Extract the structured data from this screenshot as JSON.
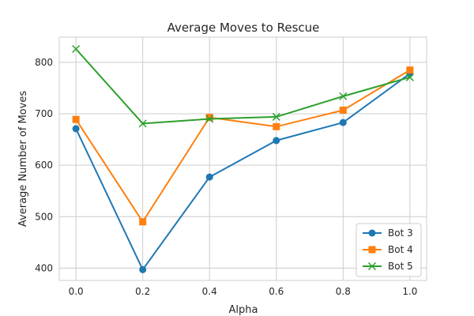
{
  "chart_data": {
    "type": "line",
    "title": "Average Moves to Rescue",
    "xlabel": "Alpha",
    "ylabel": "Average Number of Moves",
    "x": [
      0.0,
      0.2,
      0.4,
      0.6,
      0.8,
      1.0
    ],
    "x_tick_labels": [
      "0.0",
      "0.2",
      "0.4",
      "0.6",
      "0.8",
      "1.0"
    ],
    "y_ticks": [
      400,
      500,
      600,
      700,
      800
    ],
    "y_tick_labels": [
      "400",
      "500",
      "600",
      "700",
      "800"
    ],
    "xlim": [
      -0.05,
      1.05
    ],
    "ylim": [
      376,
      849
    ],
    "grid": true,
    "legend_position": "lower-right",
    "series": [
      {
        "name": "Bot 3",
        "color": "#1f77b4",
        "marker": "circle",
        "values": [
          671,
          397,
          577,
          648,
          683,
          778
        ]
      },
      {
        "name": "Bot 4",
        "color": "#ff7f0e",
        "marker": "square",
        "values": [
          689,
          490,
          693,
          675,
          707,
          785
        ]
      },
      {
        "name": "Bot 5",
        "color": "#2ca02c",
        "marker": "x",
        "values": [
          826,
          681,
          690,
          694,
          734,
          771
        ]
      }
    ]
  }
}
